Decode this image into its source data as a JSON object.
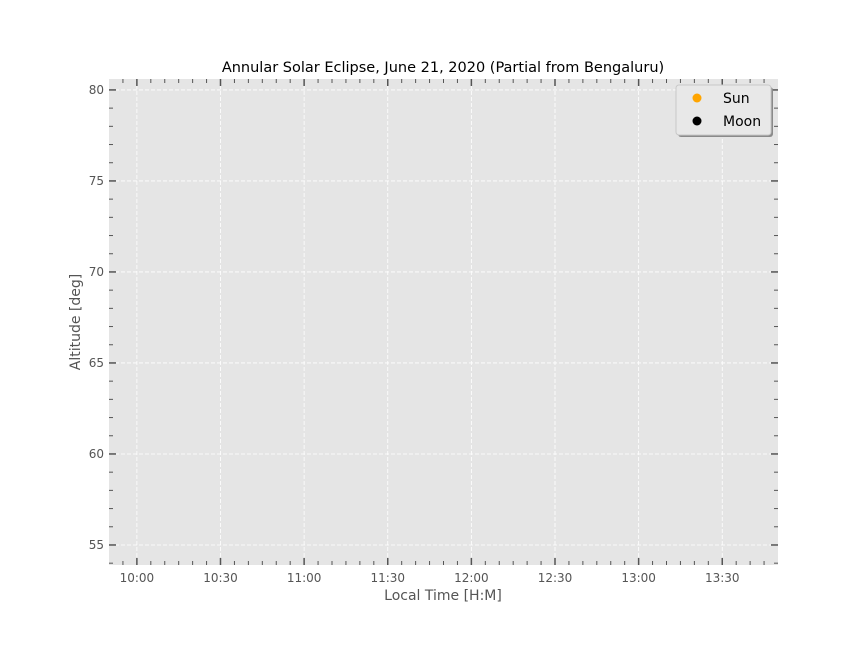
{
  "chart_data": {
    "type": "scatter",
    "title": "Annular Solar Eclipse, June 21, 2020 (Partial from Bengaluru)",
    "xlabel": "Local Time [H:M]",
    "ylabel": "Altitude [deg]",
    "x_ticks": [
      "10:00",
      "10:30",
      "11:00",
      "11:30",
      "12:00",
      "12:30",
      "13:00",
      "13:30"
    ],
    "y_ticks": [
      55,
      60,
      65,
      70,
      75,
      80
    ],
    "xlim": [
      "09:50",
      "13:50"
    ],
    "ylim": [
      53.9,
      80.6
    ],
    "grid": true,
    "legend_position": "top-right",
    "series": [
      {
        "name": "Sun",
        "color": "#ffa500",
        "values": []
      },
      {
        "name": "Moon",
        "color": "#000000",
        "values": []
      }
    ],
    "style": {
      "plot_background": "#e5e5e5",
      "grid_color": "#ffffff"
    }
  }
}
